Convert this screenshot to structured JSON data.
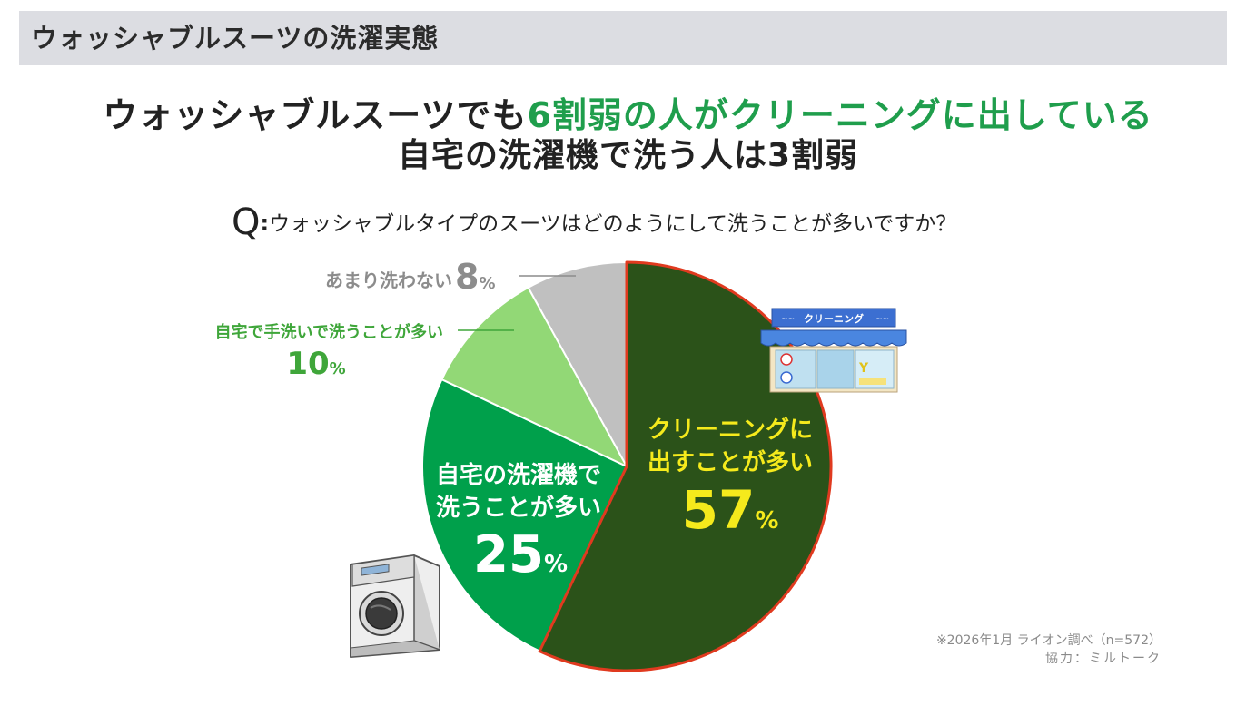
{
  "header": {
    "title": "ウォッシャブルスーツの洗濯実態"
  },
  "headline": {
    "line1_prefix": "ウォッシャブルスーツでも",
    "line1_highlight": "6割弱の人がクリーニングに出している",
    "line2": "自宅の洗濯機で洗う人は3割弱"
  },
  "question": {
    "marker": "Q",
    "colon": ":",
    "text": "ウォッシャブルタイプのスーツはどのようにして洗うことが多いですか？"
  },
  "colors": {
    "green_accent": "#1f9e4c",
    "yellow_label": "#f5ea1c"
  },
  "icons": {
    "shop": "cleaning-shop-icon",
    "washer": "washing-machine-icon"
  },
  "shop_sign": "クリーニング",
  "chart_data": {
    "type": "pie",
    "title": "",
    "slices": [
      {
        "label_lines": [
          "クリーニングに",
          "出すことが多い"
        ],
        "value": 57,
        "unit": "%",
        "color": "#2b5219",
        "stroke": "#e03a1f",
        "label_color": "#f5ea1c"
      },
      {
        "label_lines": [
          "自宅の洗濯機で",
          "洗うことが多い"
        ],
        "value": 25,
        "unit": "%",
        "color": "#00a04b",
        "stroke": "#ffffff",
        "label_color": "#ffffff"
      },
      {
        "label_lines": [
          "自宅で手洗いで洗うことが多い"
        ],
        "value": 10,
        "unit": "%",
        "color": "#92d876",
        "stroke": "#ffffff",
        "label_color": "#3fa63a"
      },
      {
        "label_lines": [
          "あまり洗わない"
        ],
        "value": 8,
        "unit": "%",
        "color": "#c0c0c0",
        "stroke": "#ffffff",
        "label_color": "#8c8c8c"
      }
    ]
  },
  "notes": {
    "source": "※2026年1月 ライオン調べ（n=572）",
    "cooperation": "協力：ミルトーク"
  }
}
